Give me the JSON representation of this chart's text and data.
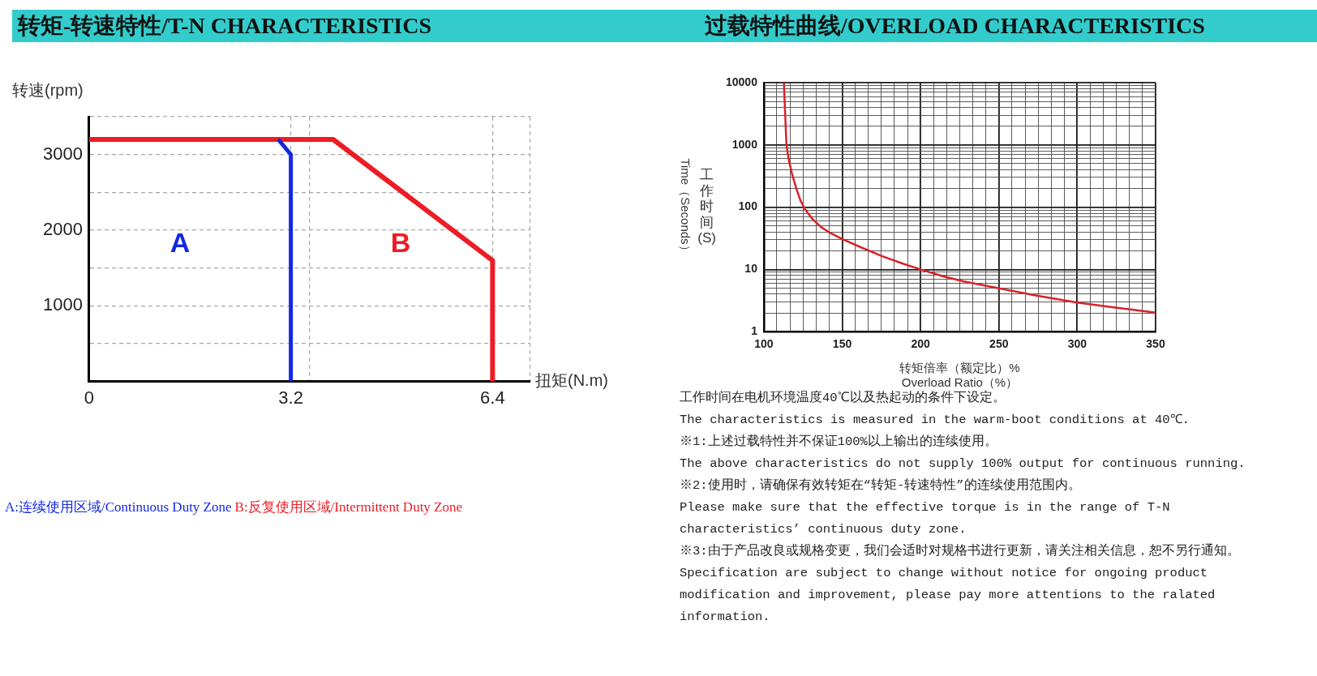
{
  "chart_data": [
    {
      "type": "line",
      "title": "转矩-转速特性/T-N CHARACTERISTICS",
      "xlabel": "扭矩(N.m)",
      "ylabel": "转速(rpm)",
      "series": [
        {
          "name": "A:连续使用区域/Continuous Duty Zone",
          "color": "#1428e0",
          "x": [
            3.0,
            3.2,
            3.2
          ],
          "values": [
            3200,
            3000,
            0
          ]
        },
        {
          "name": "B:反复使用区域/Intermittent Duty Zone",
          "color": "#ee1c25",
          "x": [
            0,
            3.87,
            6.4,
            6.4
          ],
          "values": [
            3200,
            3200,
            1600,
            0
          ]
        }
      ],
      "xlim": [
        0,
        7
      ],
      "xticks": [
        0,
        3.2,
        {
          "value": 3.5,
          "label": null
        },
        6.4,
        {
          "value": 7,
          "label": null
        }
      ],
      "ylim": [
        0,
        3500
      ],
      "yticks": [
        {
          "value": 500,
          "label": null
        },
        1000,
        {
          "value": 1500,
          "label": null
        },
        2000,
        {
          "value": 2500,
          "label": null
        },
        3000,
        {
          "value": 3500,
          "label": null
        }
      ],
      "grid": true,
      "legend": "bottom left",
      "marker": "none",
      "line_style": "solid",
      "annotations": [
        "A",
        "B"
      ]
    },
    {
      "type": "line",
      "title": "过载特性曲线/OVERLOAD CHARACTERISTICS",
      "xlabel": "转矩倍率（额定比）%\nOverload Ratio（%）",
      "ylabel": "工作时间(S)\nTime（Seconds）",
      "x": [
        112.8,
        113.5,
        114.4,
        115.8,
        117.8,
        120.7,
        123.4,
        126.4,
        130.9,
        136.5,
        142.1,
        150,
        162.4,
        175.9,
        189.4,
        200,
        214.2,
        227.7,
        249.5,
        272.7,
        299.8,
        324.5,
        349.3
      ],
      "series": [
        {
          "color": "#d9222a",
          "values": [
            10000,
            3580,
            1000,
            593,
            355,
            199,
            127,
            92,
            65,
            48,
            38.9,
            30.9,
            22.4,
            16.2,
            12.2,
            10,
            7.8,
            6.4,
            5.0,
            3.85,
            2.94,
            2.43,
            2.03
          ]
        }
      ],
      "xlim": [
        100,
        350
      ],
      "xticks": [
        100,
        {
          "value": 108.3,
          "label": null
        },
        {
          "value": 116.7,
          "label": null
        },
        {
          "value": 125,
          "label": null
        },
        {
          "value": 133.3,
          "label": null
        },
        {
          "value": 141.7,
          "label": null
        },
        150,
        {
          "value": 158.3,
          "label": null
        },
        {
          "value": 166.7,
          "label": null
        },
        {
          "value": 175,
          "label": null
        },
        {
          "value": 183.3,
          "label": null
        },
        {
          "value": 191.7,
          "label": null
        },
        200,
        {
          "value": 208.3,
          "label": null
        },
        {
          "value": 216.7,
          "label": null
        },
        {
          "value": 225,
          "label": null
        },
        {
          "value": 233.3,
          "label": null
        },
        {
          "value": 241.7,
          "label": null
        },
        250,
        {
          "value": 258.3,
          "label": null
        },
        {
          "value": 266.7,
          "label": null
        },
        {
          "value": 275,
          "label": null
        },
        {
          "value": 283.3,
          "label": null
        },
        {
          "value": 291.7,
          "label": null
        },
        300,
        {
          "value": 308.3,
          "label": null
        },
        {
          "value": 316.7,
          "label": null
        },
        {
          "value": 325,
          "label": null
        },
        {
          "value": 333.3,
          "label": null
        },
        {
          "value": 341.7,
          "label": null
        },
        350
      ],
      "ylim": [
        1,
        10000
      ],
      "yticks": [
        1,
        {
          "value": 2,
          "label": null
        },
        {
          "value": 3,
          "label": null
        },
        {
          "value": 4,
          "label": null
        },
        {
          "value": 5,
          "label": null
        },
        {
          "value": 6,
          "label": null
        },
        {
          "value": 7,
          "label": null
        },
        {
          "value": 8,
          "label": null
        },
        {
          "value": 9,
          "label": null
        },
        10,
        {
          "value": 20,
          "label": null
        },
        {
          "value": 30,
          "label": null
        },
        {
          "value": 40,
          "label": null
        },
        {
          "value": 50,
          "label": null
        },
        {
          "value": 60,
          "label": null
        },
        {
          "value": 70,
          "label": null
        },
        {
          "value": 80,
          "label": null
        },
        {
          "value": 90,
          "label": null
        },
        100,
        {
          "value": 200,
          "label": null
        },
        {
          "value": 300,
          "label": null
        },
        {
          "value": 400,
          "label": null
        },
        {
          "value": 500,
          "label": null
        },
        {
          "value": 600,
          "label": null
        },
        {
          "value": 700,
          "label": null
        },
        {
          "value": 800,
          "label": null
        },
        {
          "value": 900,
          "label": null
        },
        1000,
        {
          "value": 2000,
          "label": null
        },
        {
          "value": 3000,
          "label": null
        },
        {
          "value": 4000,
          "label": null
        },
        {
          "value": 5000,
          "label": null
        },
        {
          "value": 6000,
          "label": null
        },
        {
          "value": 7000,
          "label": null
        },
        {
          "value": 8000,
          "label": null
        },
        {
          "value": 9000,
          "label": null
        },
        10000
      ],
      "log": "y",
      "grid": true,
      "marker": "none",
      "annotations": [
        "工作时间在电机环境温度40℃以及热起动的条件下设定。",
        "The characteristics is measured in the warm-boot conditions at 40℃.",
        "※1:上述过载特性并不保证100%以上输出的连续使用。",
        "The above characteristics do not supply 100% output for continuous running.",
        "※2:使用时，请确保有效转矩在“转矩-转速特性”的连续使用范围内。",
        "Please make sure that the effective torque is in the range of T-N characteristics’ continuous duty zone.",
        "※3:由于产品改良或规格变更，我们会适时对规格书进行更新，请关注相关信息，恕不另行通知。",
        "Specification are subject to change without notice for ongoing product modification and improvement, please pay more attentions to the ralated information."
      ]
    }
  ]
}
